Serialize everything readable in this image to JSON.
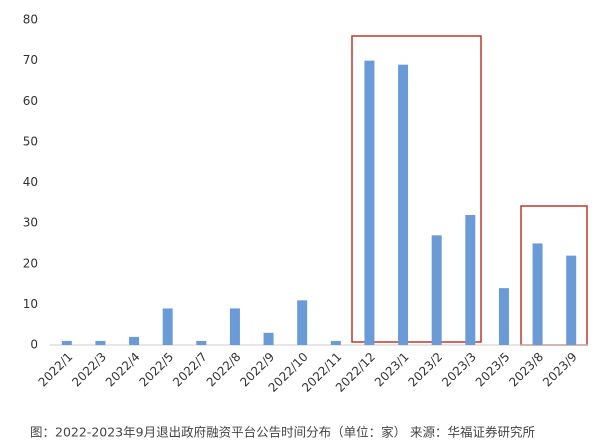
{
  "chart_data": {
    "type": "bar",
    "caption": "图：2022-2023年9月退出政府融资平台公告时间分布（单位：家） 来源：华福证券研究所",
    "categories": [
      "2022/1",
      "2022/3",
      "2022/4",
      "2022/5",
      "2022/7",
      "2022/8",
      "2022/9",
      "2022/10",
      "2022/11",
      "2022/12",
      "2023/1",
      "2023/2",
      "2023/3",
      "2023/5",
      "2023/8",
      "2023/9"
    ],
    "values": [
      1,
      1,
      2,
      9,
      1,
      9,
      3,
      11,
      1,
      70,
      69,
      27,
      32,
      14,
      25,
      22
    ],
    "color": "#6a9bd6",
    "ylim": [
      0,
      80
    ],
    "yticks": [
      0,
      10,
      20,
      30,
      40,
      50,
      60,
      70,
      80
    ],
    "grid": false
  }
}
